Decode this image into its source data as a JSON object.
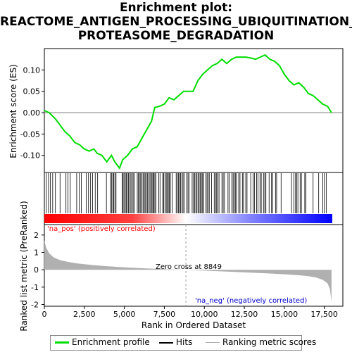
{
  "title_lines": [
    "Enrichment plot:",
    "REACTOME_ANTIGEN_PROCESSING_UBIQUITINATION_",
    "PROTEASOME_DEGRADATION"
  ],
  "colors": {
    "es_line": "#00dd00",
    "hits": "#000000",
    "metric_fill": "#b0b0b0",
    "pos_label": "#ff0000",
    "neg_label": "#0000cc",
    "zero_line": "#a0a0a0",
    "bar_red": "#ff0000",
    "bar_blue": "#0000ff"
  },
  "labels": {
    "na_pos": "'na_pos' (positively correlated)",
    "na_neg": "'na_neg' (negatively correlated)",
    "zero_cross": "Zero cross at 8849"
  },
  "legend": {
    "enrichment": "Enrichment profile",
    "hits": "Hits",
    "ranking": "Ranking metric scores"
  },
  "chart_data": {
    "type": "line",
    "n_genes": 18000,
    "zero_cross": 8849,
    "xlabel": "Rank in Ordered Dataset",
    "ylabel_top": "Enrichment score (ES)",
    "ylabel_bottom": "Ranked list metric (PreRanked)",
    "x_ticks": [
      "0",
      "2,500",
      "5,000",
      "7,500",
      "10,000",
      "12,500",
      "15,000",
      "17,500"
    ],
    "x_tick_values": [
      0,
      2500,
      5000,
      7500,
      10000,
      12500,
      15000,
      17500
    ],
    "es_ticks": [
      "0.10",
      "0.05",
      "0.00",
      "-0.05",
      "-0.10"
    ],
    "es_tick_values": [
      0.1,
      0.05,
      0.0,
      -0.05,
      -0.1
    ],
    "es_ylim": [
      -0.14,
      0.15
    ],
    "metric_ticks": [
      "2",
      "1",
      "0",
      "-1",
      "-2"
    ],
    "metric_tick_values": [
      2,
      1,
      0,
      -1,
      -2
    ],
    "metric_ylim": [
      -2.1,
      2.6
    ],
    "es_curve": {
      "x": [
        0,
        300,
        700,
        1000,
        1300,
        1600,
        1900,
        2200,
        2500,
        2800,
        3100,
        3300,
        3600,
        3900,
        4200,
        4400,
        4700,
        4900,
        5200,
        5500,
        5800,
        6100,
        6400,
        6700,
        6900,
        7200,
        7500,
        7800,
        8100,
        8400,
        8700,
        9000,
        9300,
        9600,
        9900,
        10200,
        10500,
        10800,
        11100,
        11400,
        11700,
        12000,
        12300,
        12600,
        12900,
        13200,
        13500,
        13800,
        14100,
        14400,
        14700,
        15000,
        15300,
        15600,
        15900,
        16200,
        16500,
        16800,
        17100,
        17400,
        17700,
        17950
      ],
      "y": [
        0.005,
        0.0,
        -0.015,
        -0.03,
        -0.045,
        -0.055,
        -0.07,
        -0.075,
        -0.085,
        -0.09,
        -0.085,
        -0.095,
        -0.1,
        -0.115,
        -0.1,
        -0.115,
        -0.13,
        -0.11,
        -0.1,
        -0.085,
        -0.08,
        -0.06,
        -0.04,
        -0.02,
        0.012,
        0.015,
        0.02,
        0.035,
        0.03,
        0.04,
        0.05,
        0.05,
        0.05,
        0.075,
        0.09,
        0.1,
        0.11,
        0.115,
        0.125,
        0.115,
        0.125,
        0.13,
        0.13,
        0.13,
        0.128,
        0.125,
        0.13,
        0.135,
        0.125,
        0.12,
        0.11,
        0.09,
        0.075,
        0.065,
        0.07,
        0.06,
        0.045,
        0.04,
        0.03,
        0.02,
        0.015,
        0.0
      ]
    },
    "hits": [
      120,
      260,
      380,
      520,
      690,
      980,
      1350,
      1480,
      1620,
      2020,
      2180,
      2310,
      2620,
      2760,
      2890,
      3010,
      3180,
      3330,
      3880,
      4130,
      4210,
      4280,
      4340,
      4410,
      4480,
      4860,
      4920,
      4980,
      5060,
      5120,
      5180,
      5260,
      5330,
      5410,
      5480,
      5550,
      5620,
      5810,
      5880,
      5950,
      6020,
      6100,
      6170,
      6240,
      6300,
      6370,
      6440,
      6520,
      6600,
      6670,
      6730,
      6790,
      6850,
      6910,
      6980,
      7150,
      7230,
      7400,
      7460,
      7540,
      7620,
      7690,
      7750,
      7810,
      7880,
      8000,
      8240,
      8310,
      8380,
      8450,
      8520,
      8600,
      8670,
      8740,
      8900,
      8980,
      9050,
      9240,
      9320,
      9400,
      9470,
      9540,
      9610,
      9680,
      9750,
      9820,
      9890,
      9960,
      10100,
      10170,
      10240,
      10310,
      10450,
      10620,
      10700,
      10770,
      10850,
      10920,
      11100,
      11180,
      11260,
      11480,
      11560,
      11720,
      11800,
      11870,
      11940,
      12010,
      12150,
      12230,
      12380,
      12450,
      12590,
      12670,
      12900,
      13050,
      13130,
      13270,
      13350,
      13480,
      13560,
      13700,
      13780,
      13850,
      14050,
      14200,
      14280,
      14450,
      14520,
      14800,
      15450,
      15600,
      15700,
      15780,
      15850,
      15990,
      16070,
      16280,
      16350,
      16800,
      17150,
      17400,
      17500,
      17620
    ],
    "metric_curve": {
      "x": [
        0,
        100,
        300,
        600,
        1000,
        1500,
        2000,
        3000,
        4000,
        5000,
        6000,
        7000,
        8000,
        8849,
        10000,
        11000,
        12000,
        13000,
        14000,
        15000,
        16000,
        16500,
        17000,
        17400,
        17700,
        17850,
        17950
      ],
      "y": [
        1.7,
        1.3,
        0.95,
        0.7,
        0.55,
        0.45,
        0.37,
        0.27,
        0.2,
        0.14,
        0.09,
        0.05,
        0.02,
        0.0,
        -0.05,
        -0.09,
        -0.13,
        -0.17,
        -0.21,
        -0.26,
        -0.32,
        -0.37,
        -0.45,
        -0.58,
        -0.78,
        -1.1,
        -1.85
      ]
    }
  }
}
